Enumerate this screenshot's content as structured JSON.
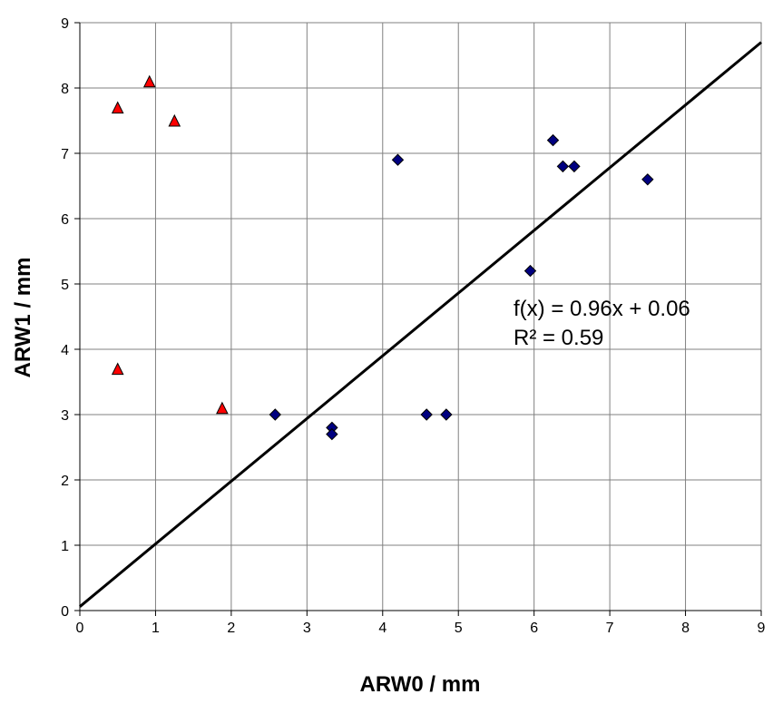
{
  "chart_data": {
    "type": "scatter",
    "title": "",
    "xlabel": "ARW0 / mm",
    "ylabel": "ARW1 / mm",
    "xlim": [
      0,
      9
    ],
    "ylim": [
      0,
      9
    ],
    "x_ticks": [
      "0",
      "1",
      "2",
      "3",
      "4",
      "5",
      "6",
      "7",
      "8",
      "9"
    ],
    "y_ticks": [
      "0",
      "1",
      "2",
      "3",
      "4",
      "5",
      "6",
      "7",
      "8",
      "9"
    ],
    "grid": true,
    "legend": "none",
    "series": [
      {
        "marker": "diamond",
        "color": "#000080",
        "points": [
          {
            "x": 2.58,
            "y": 3.0
          },
          {
            "x": 3.33,
            "y": 2.8
          },
          {
            "x": 3.33,
            "y": 2.7
          },
          {
            "x": 4.58,
            "y": 3.0
          },
          {
            "x": 4.84,
            "y": 3.0
          },
          {
            "x": 4.2,
            "y": 6.9
          },
          {
            "x": 5.95,
            "y": 5.2
          },
          {
            "x": 6.25,
            "y": 7.2
          },
          {
            "x": 6.38,
            "y": 6.8
          },
          {
            "x": 6.53,
            "y": 6.8
          },
          {
            "x": 7.5,
            "y": 6.6
          }
        ]
      },
      {
        "marker": "triangle",
        "color": "#ff0000",
        "points": [
          {
            "x": 0.5,
            "y": 7.7
          },
          {
            "x": 0.92,
            "y": 8.1
          },
          {
            "x": 1.25,
            "y": 7.5
          },
          {
            "x": 0.5,
            "y": 3.7
          },
          {
            "x": 1.88,
            "y": 3.1
          }
        ]
      }
    ],
    "trendline": {
      "type": "linear",
      "slope": 0.96,
      "intercept": 0.06,
      "color": "#000000",
      "equation_label": "f(x) = 0.96x + 0.06",
      "r2_label": "R² = 0.59"
    }
  }
}
